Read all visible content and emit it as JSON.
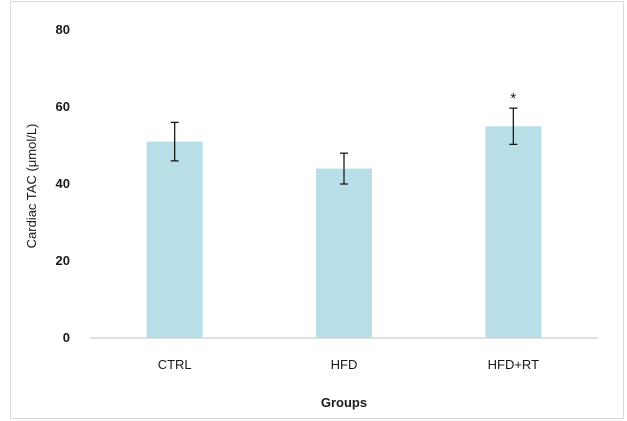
{
  "colors": {
    "bar": "#b8dfe8",
    "axis": "#bfbfbf",
    "text": "#1a1a1a",
    "error_bar": "#1a1a1a"
  },
  "chart_data": {
    "type": "bar",
    "categories": [
      "CTRL",
      "HFD",
      "HFD+RT"
    ],
    "values": [
      51,
      44,
      55
    ],
    "error": [
      5,
      4,
      4.7
    ],
    "annotations": [
      "",
      "",
      "*"
    ],
    "xlabel": "Groups",
    "ylabel": "Cardiac TAC (μmol/L)",
    "ylim": [
      0,
      80
    ],
    "yticks": [
      "0",
      "20",
      "40",
      "60",
      "80"
    ],
    "grid": false
  }
}
